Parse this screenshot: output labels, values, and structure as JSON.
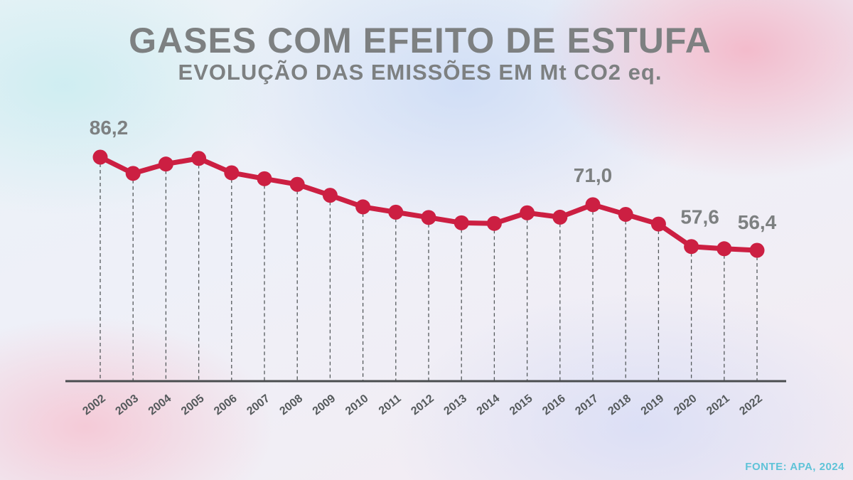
{
  "header": {
    "title": "GASES COM EFEITO DE ESTUFA",
    "subtitle": "EVOLUÇÃO DAS EMISSÕES EM Mt CO2 eq."
  },
  "footer": {
    "source": "FONTE: APA, 2024"
  },
  "colors": {
    "line": "#cc1f42",
    "text": "#7d8081",
    "axis": "#4a4d4f",
    "source": "#5fc3d8"
  },
  "chart_data": {
    "type": "line",
    "title": "GASES COM EFEITO DE ESTUFA",
    "subtitle": "EVOLUÇÃO DAS EMISSÕES EM Mt CO2 eq.",
    "xlabel": "",
    "ylabel": "",
    "categories": [
      "2002",
      "2003",
      "2004",
      "2005",
      "2006",
      "2007",
      "2008",
      "2009",
      "2010",
      "2011",
      "2012",
      "2013",
      "2014",
      "2015",
      "2016",
      "2017",
      "2018",
      "2019",
      "2020",
      "2021",
      "2022"
    ],
    "series": [
      {
        "values": [
          86.2,
          81.0,
          84.0,
          85.8,
          81.2,
          79.3,
          77.5,
          74.0,
          70.3,
          68.6,
          66.9,
          65.2,
          65.0,
          68.4,
          67.0,
          71.0,
          67.9,
          64.8,
          57.6,
          56.9,
          56.4
        ]
      }
    ],
    "labels": [
      {
        "index": 0,
        "text": "86,2"
      },
      {
        "index": 15,
        "text": "71,0"
      },
      {
        "index": 18,
        "text": "57,6"
      },
      {
        "index": 20,
        "text": "56,4"
      }
    ],
    "ylim": [
      0,
      92
    ],
    "grid": false,
    "drop_lines": true
  }
}
